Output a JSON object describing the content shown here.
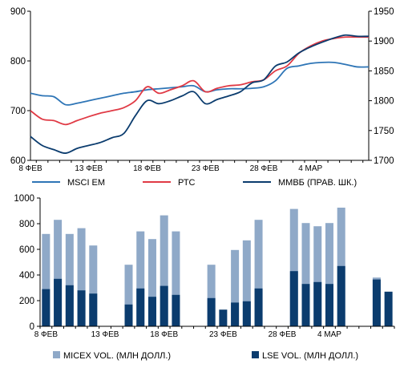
{
  "chart_data": [
    {
      "type": "line",
      "x": [
        "8 ФЕВ",
        "9 ФЕВ",
        "10 ФЕВ",
        "11 ФЕВ",
        "12 ФЕВ",
        "13 ФЕВ",
        "14 ФЕВ",
        "15 ФЕВ",
        "16 ФЕВ",
        "17 ФЕВ",
        "18 ФЕВ",
        "19 ФЕВ",
        "20 ФЕВ",
        "21 ФЕВ",
        "22 ФЕВ",
        "23 ФЕВ",
        "24 ФЕВ",
        "25 ФЕВ",
        "26 ФЕВ",
        "27 ФЕВ",
        "28 ФЕВ",
        "1 МАР",
        "2 МАР",
        "3 МАР",
        "4 МАР",
        "5 МАР",
        "6 МАР",
        "7 МАР",
        "8 МАР",
        "9 МАР"
      ],
      "xticks": [
        "8 ФЕВ",
        "13 ФЕВ",
        "18 ФЕВ",
        "23 ФЕВ",
        "28 ФЕВ",
        "4 МАР"
      ],
      "ylim": [
        600,
        900
      ],
      "yticks": [
        "600",
        "700",
        "800",
        "900"
      ],
      "y2lim": [
        1700,
        1950
      ],
      "y2ticks": [
        "1700",
        "1750",
        "1800",
        "1850",
        "1900",
        "1950"
      ],
      "legend_position": "bottom",
      "grid": false,
      "series": [
        {
          "name": "MSCI EM",
          "axis": "left",
          "color": "#2E75B6",
          "values": [
            735,
            730,
            728,
            712,
            715,
            720,
            725,
            730,
            735,
            738,
            742,
            744,
            746,
            748,
            750,
            738,
            742,
            744,
            744,
            745,
            748,
            760,
            785,
            790,
            795,
            797,
            797,
            793,
            788,
            788
          ]
        },
        {
          "name": "РТС",
          "axis": "left",
          "color": "#E03A45",
          "values": [
            700,
            683,
            680,
            672,
            680,
            688,
            695,
            700,
            706,
            720,
            748,
            735,
            742,
            750,
            760,
            738,
            745,
            750,
            752,
            758,
            762,
            780,
            790,
            815,
            830,
            840,
            845,
            848,
            848,
            848
          ]
        },
        {
          "name": "ММВБ (ПРАВ. ШК.)",
          "axis": "right",
          "color": "#0B3C6E",
          "values": [
            1740,
            1725,
            1718,
            1712,
            1720,
            1725,
            1730,
            1738,
            1745,
            1775,
            1800,
            1795,
            1800,
            1808,
            1815,
            1795,
            1802,
            1808,
            1815,
            1830,
            1835,
            1858,
            1865,
            1880,
            1890,
            1898,
            1905,
            1910,
            1908,
            1908
          ]
        }
      ]
    },
    {
      "type": "bar",
      "ylim": [
        0,
        1000
      ],
      "yticks": [
        "0",
        "200",
        "400",
        "600",
        "800",
        "1000"
      ],
      "xticks": [
        "8 ФЕВ",
        "13 ФЕВ",
        "18 ФЕВ",
        "23 ФЕВ",
        "28 ФЕВ",
        "4 МАР"
      ],
      "legend_position": "bottom",
      "grid": false,
      "series": [
        {
          "name": "MICEX VOL. (МЛН ДОЛЛ.)",
          "color": "#8FA9C8",
          "values": [
            720,
            830,
            720,
            765,
            630,
            null,
            null,
            480,
            740,
            680,
            865,
            740,
            null,
            null,
            480,
            null,
            595,
            670,
            830,
            null,
            null,
            915,
            805,
            780,
            805,
            925,
            null,
            null,
            380,
            null
          ]
        },
        {
          "name": "LSE VOL. (МЛН ДОЛЛ.)",
          "color": "#0B3C6E",
          "values": [
            290,
            370,
            320,
            280,
            255,
            null,
            null,
            170,
            295,
            230,
            315,
            245,
            null,
            null,
            220,
            130,
            185,
            195,
            295,
            null,
            null,
            430,
            330,
            345,
            330,
            470,
            null,
            null,
            365,
            270
          ]
        }
      ]
    }
  ]
}
